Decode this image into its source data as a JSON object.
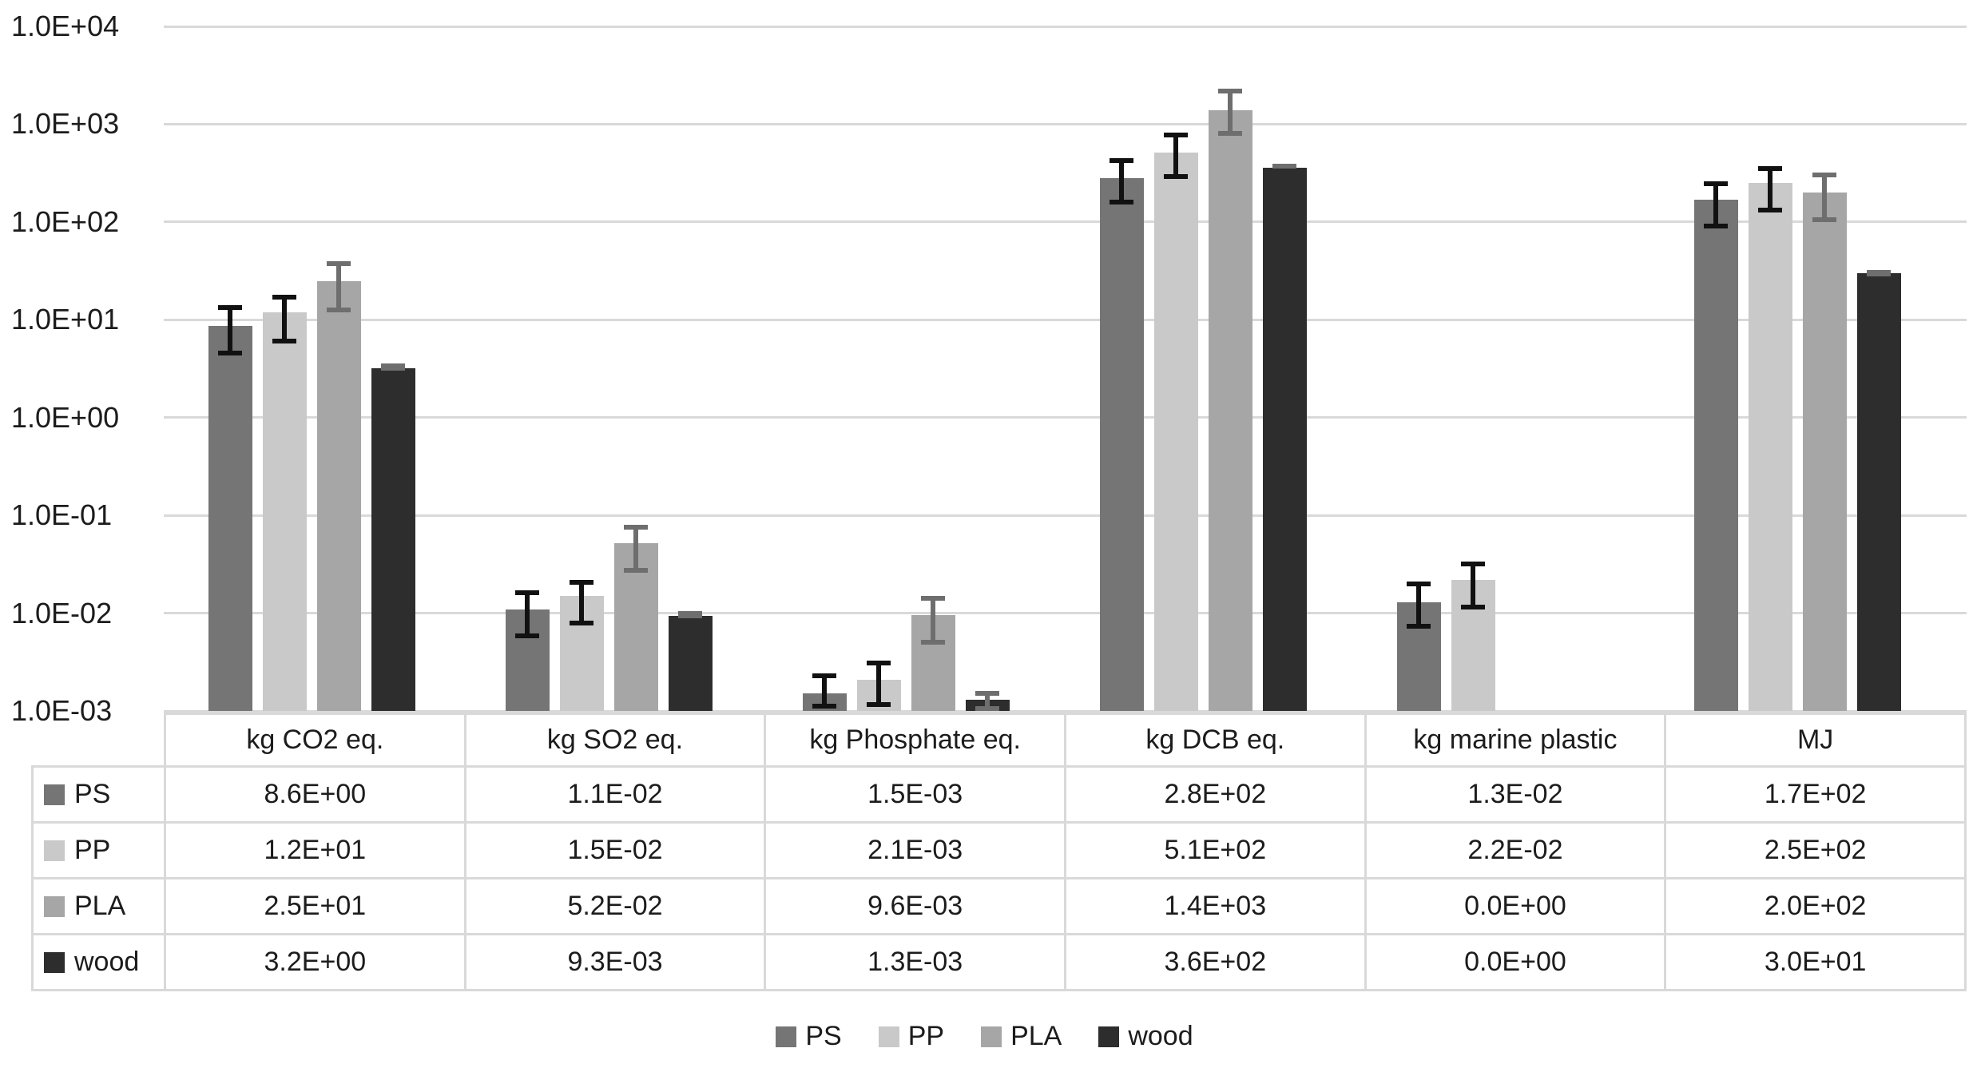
{
  "chart_data": {
    "type": "bar",
    "title": "",
    "y_scale": "log",
    "ylim": [
      0.001,
      10000
    ],
    "grid": true,
    "legend_position": "bottom",
    "y_ticks": [
      "1.0E+04",
      "1.0E+03",
      "1.0E+02",
      "1.0E+01",
      "1.0E+00",
      "1.0E-01",
      "1.0E-02",
      "1.0E-03"
    ],
    "categories": [
      "kg CO2 eq.",
      "kg SO2 eq.",
      "kg Phosphate eq.",
      "kg DCB eq.",
      "kg marine plastic",
      "MJ"
    ],
    "series": [
      {
        "name": "PS",
        "color": "#757575",
        "error_color": "#111111",
        "values": [
          8.6,
          0.011,
          0.0015,
          280,
          0.013,
          170
        ],
        "display": [
          "8.6E+00",
          "1.1E-02",
          "1.5E-03",
          "2.8E+02",
          "1.3E-02",
          "1.7E+02"
        ],
        "errors": [
          [
            4.3,
            14
          ],
          [
            0.0055,
            0.017
          ],
          [
            0.00105,
            0.0024
          ],
          [
            150,
            450
          ],
          [
            0.007,
            0.021
          ],
          [
            85,
            260
          ]
        ]
      },
      {
        "name": "PP",
        "color": "#c9c9c9",
        "error_color": "#111111",
        "values": [
          12,
          0.015,
          0.0021,
          510,
          0.022,
          250
        ],
        "display": [
          "1.2E+01",
          "1.5E-02",
          "2.1E-03",
          "5.1E+02",
          "2.2E-02",
          "2.5E+02"
        ],
        "errors": [
          [
            5.7,
            18
          ],
          [
            0.0075,
            0.022
          ],
          [
            0.0011,
            0.0033
          ],
          [
            275,
            820
          ],
          [
            0.011,
            0.034
          ],
          [
            125,
            370
          ]
        ]
      },
      {
        "name": "PLA",
        "color": "#a6a6a6",
        "error_color": "#6e6e6e",
        "values": [
          25,
          0.052,
          0.0096,
          1400,
          0,
          200
        ],
        "display": [
          "2.5E+01",
          "5.2E-02",
          "9.6E-03",
          "1.4E+03",
          "0.0E+00",
          "2.0E+02"
        ],
        "errors": [
          [
            12,
            40
          ],
          [
            0.026,
            0.08
          ],
          [
            0.0048,
            0.015
          ],
          [
            760,
            2300
          ],
          null,
          [
            100,
            320
          ]
        ]
      },
      {
        "name": "wood",
        "color": "#2d2d2d",
        "error_color": "#6e6e6e",
        "values": [
          3.2,
          0.0093,
          0.0013,
          360,
          0,
          30
        ],
        "display": [
          "3.2E+00",
          "9.3E-03",
          "1.3E-03",
          "3.6E+02",
          "0.0E+00",
          "3.0E+01"
        ],
        "errors": [
          [
            3.0,
            3.6
          ],
          [
            0.0088,
            0.0105
          ],
          [
            0.001,
            0.0016
          ],
          [
            350,
            395
          ],
          null,
          [
            28,
            32
          ]
        ]
      }
    ],
    "colors": {
      "gridline": "#d9d9d9",
      "table_border": "#d9d9d9",
      "text": "#1c1c1c",
      "background": "#ffffff"
    }
  }
}
